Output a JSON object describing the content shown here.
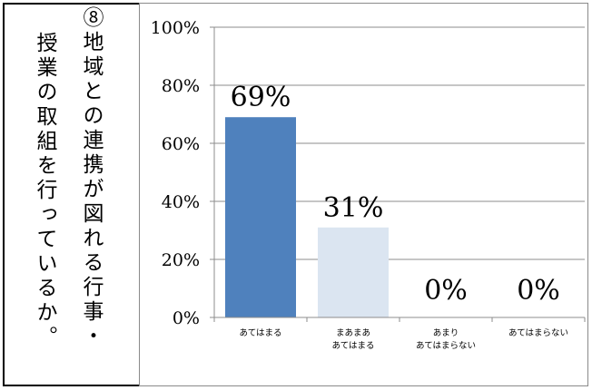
{
  "question": {
    "lines": [
      "⑧地域との連携が図れる行事・",
      "授業の取組を行っているか。"
    ]
  },
  "chart_data": {
    "type": "bar",
    "categories": [
      [
        "あてはまる"
      ],
      [
        "まあまあ",
        "あてはまる"
      ],
      [
        "あまり",
        "あてはまらない"
      ],
      [
        "あてはまらない"
      ]
    ],
    "values": [
      69,
      31,
      0,
      0
    ],
    "data_labels": [
      "69%",
      "31%",
      "0%",
      "0%"
    ],
    "bar_colors": [
      "#4f81bd",
      "#dbe5f1",
      "#dbe5f1",
      "#dbe5f1"
    ],
    "yticks": [
      "0%",
      "20%",
      "40%",
      "60%",
      "80%",
      "100%"
    ],
    "ylim": [
      0,
      100
    ],
    "gridlines": true,
    "legend": false
  }
}
